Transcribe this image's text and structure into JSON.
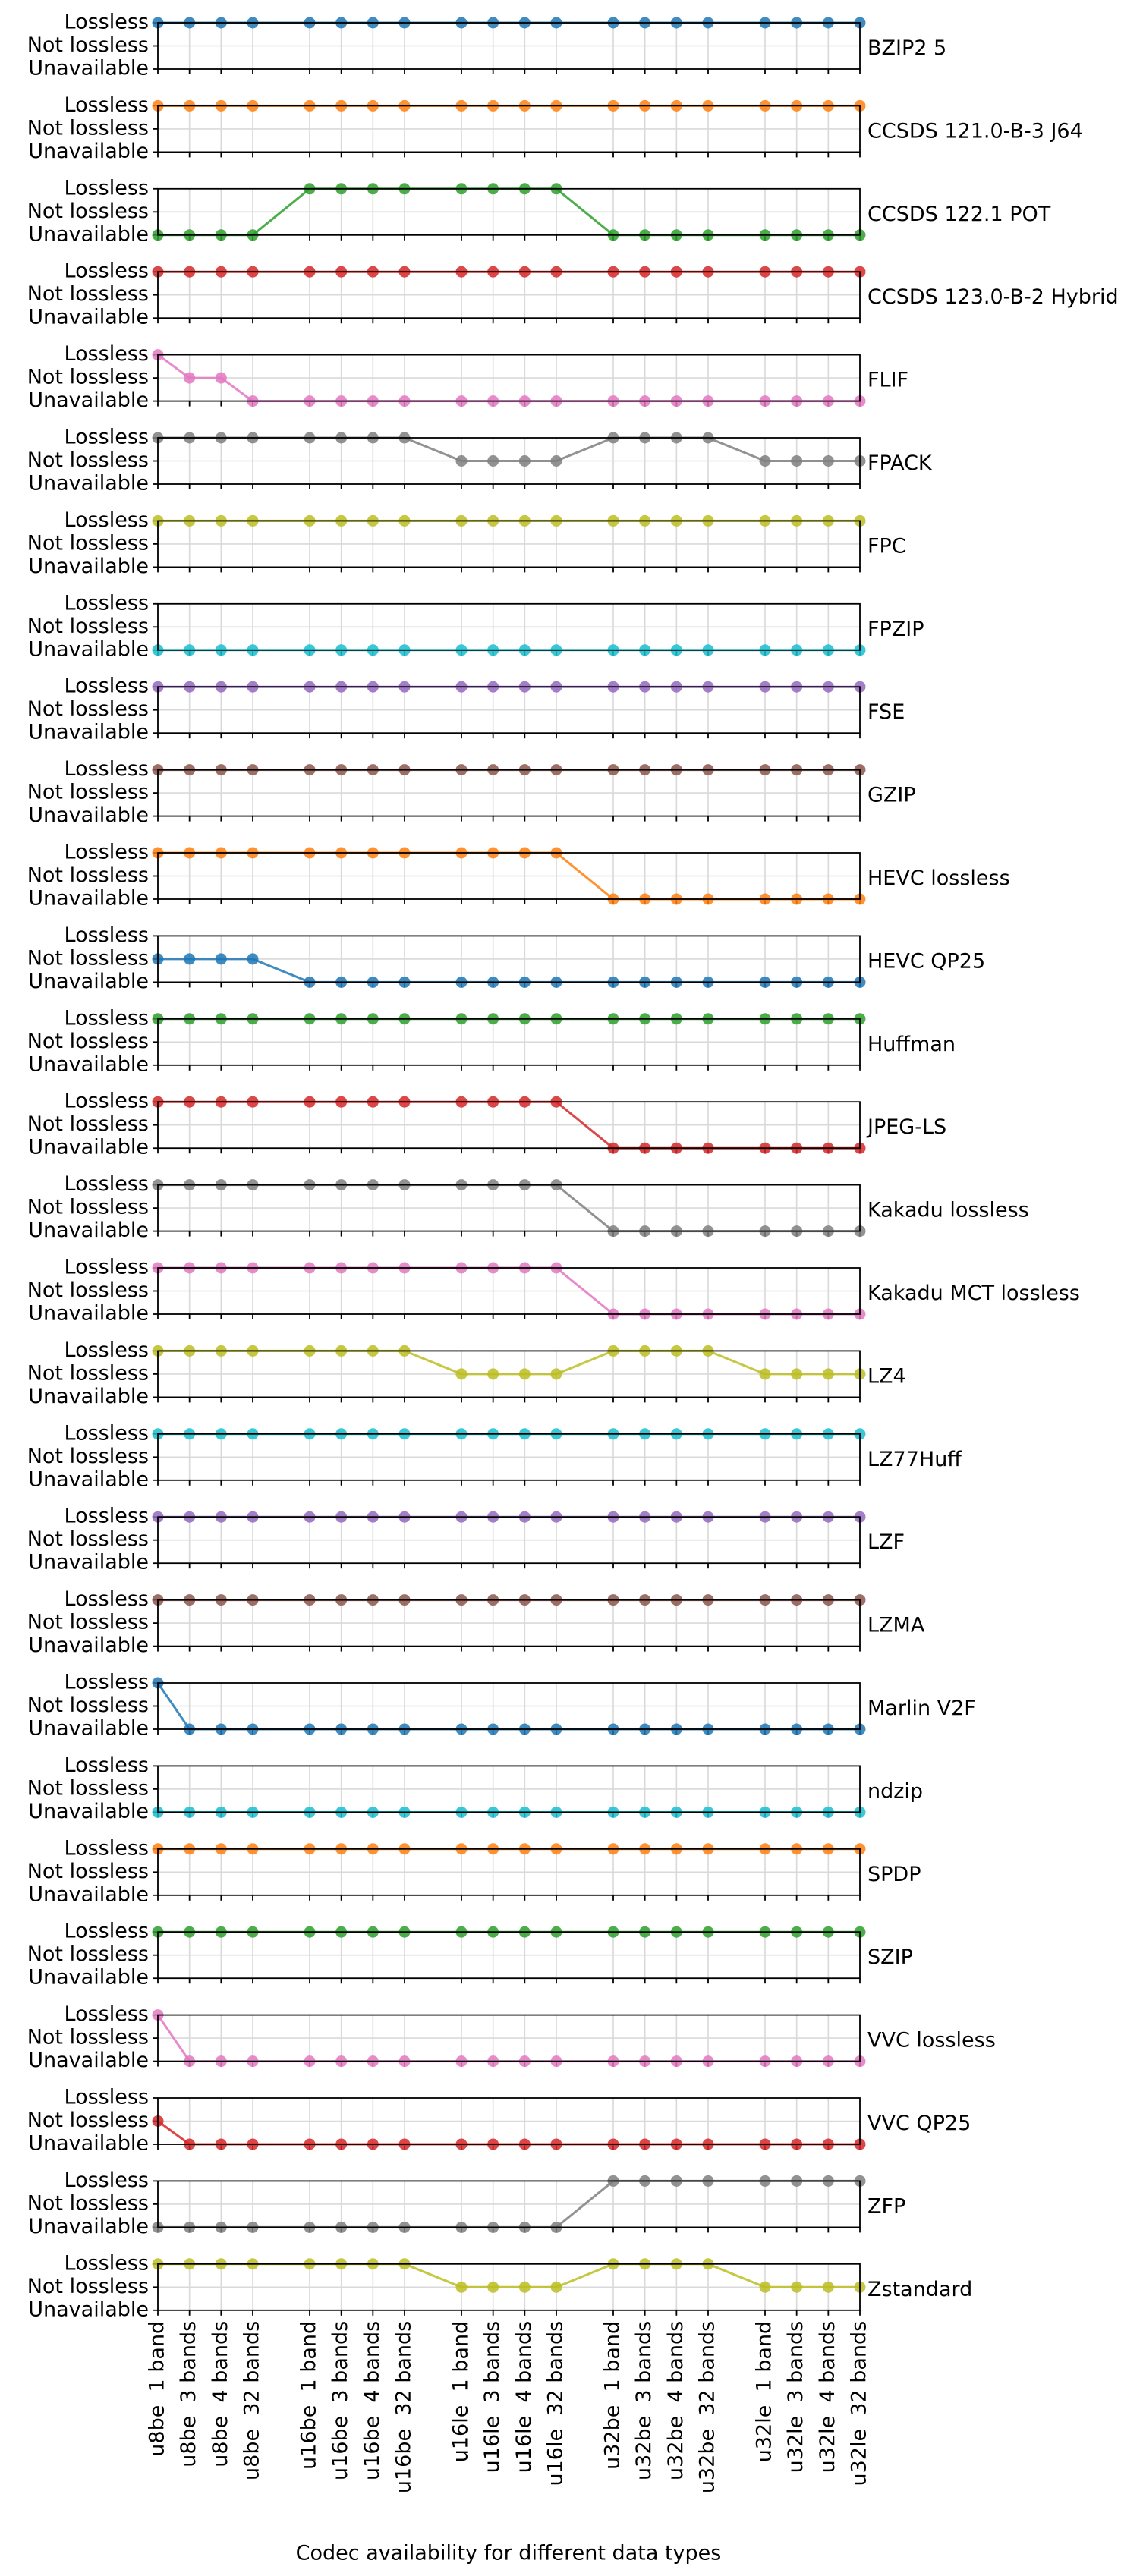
{
  "chart_data": {
    "type": "line",
    "xlabel": "Codec availability for different data types",
    "categories": [
      "u8be  1 band",
      "u8be  3 bands",
      "u8be  4 bands",
      "u8be  32 bands",
      "u16be  1 band",
      "u16be  3 bands",
      "u16be  4 bands",
      "u16be  32 bands",
      "u16le  1 band",
      "u16le  3 bands",
      "u16le  4 bands",
      "u16le  32 bands",
      "u32be  1 band",
      "u32be  3 bands",
      "u32be  4 bands",
      "u32be  32 bands",
      "u32le  1 band",
      "u32le  3 bands",
      "u32le  4 bands",
      "u32le  32 bands"
    ],
    "ylim": [
      0,
      2
    ],
    "yticks": [
      {
        "value": 0,
        "label": "Unavailable"
      },
      {
        "value": 1,
        "label": "Not lossless"
      },
      {
        "value": 2,
        "label": "Lossless"
      }
    ],
    "grid": true,
    "series": [
      {
        "name": "BZIP2 5",
        "color": "#1f77b4",
        "values": [
          2,
          2,
          2,
          2,
          2,
          2,
          2,
          2,
          2,
          2,
          2,
          2,
          2,
          2,
          2,
          2,
          2,
          2,
          2,
          2
        ]
      },
      {
        "name": "CCSDS 121.0-B-3 J64",
        "color": "#ff7f0e",
        "values": [
          2,
          2,
          2,
          2,
          2,
          2,
          2,
          2,
          2,
          2,
          2,
          2,
          2,
          2,
          2,
          2,
          2,
          2,
          2,
          2
        ]
      },
      {
        "name": "CCSDS 122.1 POT",
        "color": "#2ca02c",
        "values": [
          0,
          0,
          0,
          0,
          2,
          2,
          2,
          2,
          2,
          2,
          2,
          2,
          0,
          0,
          0,
          0,
          0,
          0,
          0,
          0
        ]
      },
      {
        "name": "CCSDS 123.0-B-2 Hybrid",
        "color": "#d62728",
        "values": [
          2,
          2,
          2,
          2,
          2,
          2,
          2,
          2,
          2,
          2,
          2,
          2,
          2,
          2,
          2,
          2,
          2,
          2,
          2,
          2
        ]
      },
      {
        "name": "FLIF",
        "color": "#e377c2",
        "values": [
          2,
          1,
          1,
          0,
          0,
          0,
          0,
          0,
          0,
          0,
          0,
          0,
          0,
          0,
          0,
          0,
          0,
          0,
          0,
          0
        ]
      },
      {
        "name": "FPACK",
        "color": "#7f7f7f",
        "values": [
          2,
          2,
          2,
          2,
          2,
          2,
          2,
          2,
          1,
          1,
          1,
          1,
          2,
          2,
          2,
          2,
          1,
          1,
          1,
          1
        ]
      },
      {
        "name": "FPC",
        "color": "#bcbd22",
        "values": [
          2,
          2,
          2,
          2,
          2,
          2,
          2,
          2,
          2,
          2,
          2,
          2,
          2,
          2,
          2,
          2,
          2,
          2,
          2,
          2
        ]
      },
      {
        "name": "FPZIP",
        "color": "#17becf",
        "values": [
          0,
          0,
          0,
          0,
          0,
          0,
          0,
          0,
          0,
          0,
          0,
          0,
          0,
          0,
          0,
          0,
          0,
          0,
          0,
          0
        ]
      },
      {
        "name": "FSE",
        "color": "#9467bd",
        "values": [
          2,
          2,
          2,
          2,
          2,
          2,
          2,
          2,
          2,
          2,
          2,
          2,
          2,
          2,
          2,
          2,
          2,
          2,
          2,
          2
        ]
      },
      {
        "name": "GZIP",
        "color": "#8c564b",
        "values": [
          2,
          2,
          2,
          2,
          2,
          2,
          2,
          2,
          2,
          2,
          2,
          2,
          2,
          2,
          2,
          2,
          2,
          2,
          2,
          2
        ]
      },
      {
        "name": "HEVC lossless",
        "color": "#ff7f0e",
        "values": [
          2,
          2,
          2,
          2,
          2,
          2,
          2,
          2,
          2,
          2,
          2,
          2,
          0,
          0,
          0,
          0,
          0,
          0,
          0,
          0
        ]
      },
      {
        "name": "HEVC QP25",
        "color": "#1f77b4",
        "values": [
          1,
          1,
          1,
          1,
          0,
          0,
          0,
          0,
          0,
          0,
          0,
          0,
          0,
          0,
          0,
          0,
          0,
          0,
          0,
          0
        ]
      },
      {
        "name": "Huffman",
        "color": "#2ca02c",
        "values": [
          2,
          2,
          2,
          2,
          2,
          2,
          2,
          2,
          2,
          2,
          2,
          2,
          2,
          2,
          2,
          2,
          2,
          2,
          2,
          2
        ]
      },
      {
        "name": "JPEG-LS",
        "color": "#d62728",
        "values": [
          2,
          2,
          2,
          2,
          2,
          2,
          2,
          2,
          2,
          2,
          2,
          2,
          0,
          0,
          0,
          0,
          0,
          0,
          0,
          0
        ]
      },
      {
        "name": "Kakadu lossless",
        "color": "#7f7f7f",
        "values": [
          2,
          2,
          2,
          2,
          2,
          2,
          2,
          2,
          2,
          2,
          2,
          2,
          0,
          0,
          0,
          0,
          0,
          0,
          0,
          0
        ]
      },
      {
        "name": "Kakadu MCT lossless",
        "color": "#e377c2",
        "values": [
          2,
          2,
          2,
          2,
          2,
          2,
          2,
          2,
          2,
          2,
          2,
          2,
          0,
          0,
          0,
          0,
          0,
          0,
          0,
          0
        ]
      },
      {
        "name": "LZ4",
        "color": "#bcbd22",
        "values": [
          2,
          2,
          2,
          2,
          2,
          2,
          2,
          2,
          1,
          1,
          1,
          1,
          2,
          2,
          2,
          2,
          1,
          1,
          1,
          1
        ]
      },
      {
        "name": "LZ77Huff",
        "color": "#17becf",
        "values": [
          2,
          2,
          2,
          2,
          2,
          2,
          2,
          2,
          2,
          2,
          2,
          2,
          2,
          2,
          2,
          2,
          2,
          2,
          2,
          2
        ]
      },
      {
        "name": "LZF",
        "color": "#9467bd",
        "values": [
          2,
          2,
          2,
          2,
          2,
          2,
          2,
          2,
          2,
          2,
          2,
          2,
          2,
          2,
          2,
          2,
          2,
          2,
          2,
          2
        ]
      },
      {
        "name": "LZMA",
        "color": "#8c564b",
        "values": [
          2,
          2,
          2,
          2,
          2,
          2,
          2,
          2,
          2,
          2,
          2,
          2,
          2,
          2,
          2,
          2,
          2,
          2,
          2,
          2
        ]
      },
      {
        "name": "Marlin V2F",
        "color": "#1f77b4",
        "values": [
          2,
          0,
          0,
          0,
          0,
          0,
          0,
          0,
          0,
          0,
          0,
          0,
          0,
          0,
          0,
          0,
          0,
          0,
          0,
          0
        ]
      },
      {
        "name": "ndzip",
        "color": "#17becf",
        "values": [
          0,
          0,
          0,
          0,
          0,
          0,
          0,
          0,
          0,
          0,
          0,
          0,
          0,
          0,
          0,
          0,
          0,
          0,
          0,
          0
        ]
      },
      {
        "name": "SPDP",
        "color": "#ff7f0e",
        "values": [
          2,
          2,
          2,
          2,
          2,
          2,
          2,
          2,
          2,
          2,
          2,
          2,
          2,
          2,
          2,
          2,
          2,
          2,
          2,
          2
        ]
      },
      {
        "name": "SZIP",
        "color": "#2ca02c",
        "values": [
          2,
          2,
          2,
          2,
          2,
          2,
          2,
          2,
          2,
          2,
          2,
          2,
          2,
          2,
          2,
          2,
          2,
          2,
          2,
          2
        ]
      },
      {
        "name": "VVC lossless",
        "color": "#e377c2",
        "values": [
          2,
          0,
          0,
          0,
          0,
          0,
          0,
          0,
          0,
          0,
          0,
          0,
          0,
          0,
          0,
          0,
          0,
          0,
          0,
          0
        ]
      },
      {
        "name": "VVC QP25",
        "color": "#d62728",
        "values": [
          1,
          0,
          0,
          0,
          0,
          0,
          0,
          0,
          0,
          0,
          0,
          0,
          0,
          0,
          0,
          0,
          0,
          0,
          0,
          0
        ]
      },
      {
        "name": "ZFP",
        "color": "#7f7f7f",
        "values": [
          0,
          0,
          0,
          0,
          0,
          0,
          0,
          0,
          0,
          0,
          0,
          0,
          2,
          2,
          2,
          2,
          2,
          2,
          2,
          2
        ]
      },
      {
        "name": "Zstandard",
        "color": "#bcbd22",
        "values": [
          2,
          2,
          2,
          2,
          2,
          2,
          2,
          2,
          1,
          1,
          1,
          1,
          2,
          2,
          2,
          2,
          1,
          1,
          1,
          1
        ]
      }
    ]
  }
}
